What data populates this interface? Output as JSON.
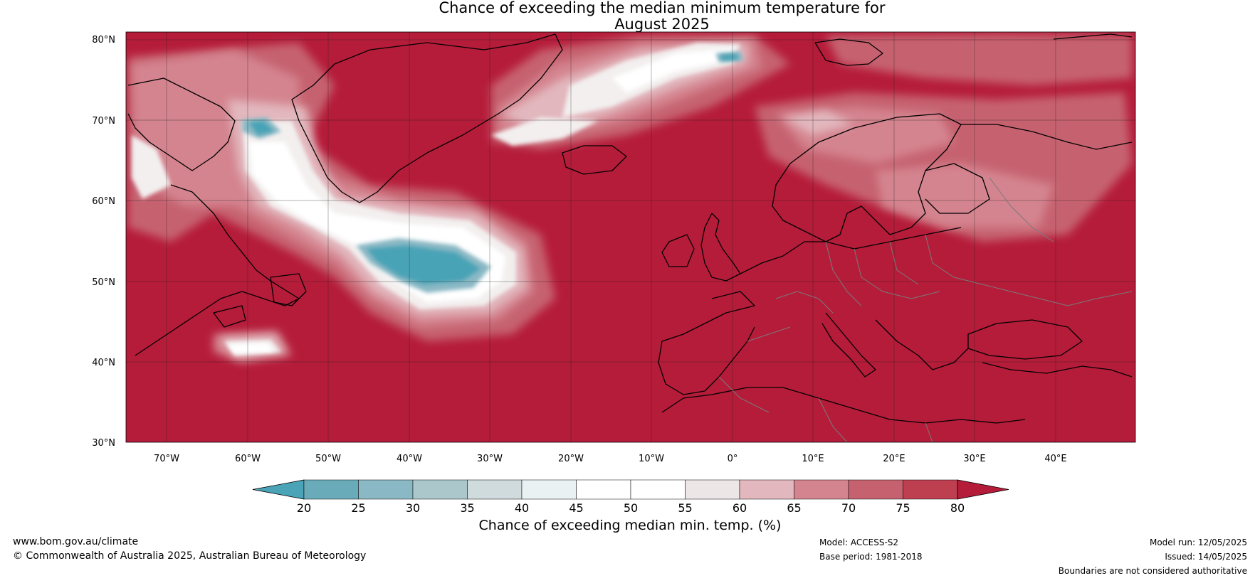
{
  "title": {
    "line1": "Chance of exceeding the median minimum temperature for",
    "line2": "August 2025"
  },
  "map": {
    "lat_labels": [
      "80°N",
      "70°N",
      "60°N",
      "50°N",
      "40°N",
      "30°N"
    ],
    "lon_labels": [
      "70°W",
      "60°W",
      "50°W",
      "40°W",
      "30°W",
      "20°W",
      "10°W",
      "0°",
      "10°E",
      "20°E",
      "30°E",
      "40°E"
    ],
    "lat_range": [
      30,
      80
    ],
    "lon_range": [
      -75,
      50
    ],
    "background_color": "#b51c3a"
  },
  "colorbar": {
    "ticks": [
      "20",
      "25",
      "30",
      "35",
      "40",
      "45",
      "50",
      "55",
      "60",
      "65",
      "70",
      "75",
      "80"
    ],
    "colors": [
      "#4aa3b6",
      "#6aabba",
      "#8ab8c4",
      "#abc7cc",
      "#cfdbdc",
      "#eaf1f2",
      "#ffffff",
      "#ffffff",
      "#ece6e7",
      "#e2b7bd",
      "#d4848f",
      "#c66270",
      "#bd3f50",
      "#b51c3a"
    ],
    "label": "Chance of exceeding median min. temp. (%)"
  },
  "footer": {
    "url": "www.bom.gov.au/climate",
    "copyright": "© Commonwealth of Australia 2025, Australian Bureau of Meteorology",
    "model": "Model: ACCESS-S2",
    "base_period": "Base period: 1981-2018",
    "model_run": "Model run: 12/05/2025",
    "issued": "Issued: 14/05/2025",
    "disclaimer": "Boundaries are not considered authoritative"
  }
}
